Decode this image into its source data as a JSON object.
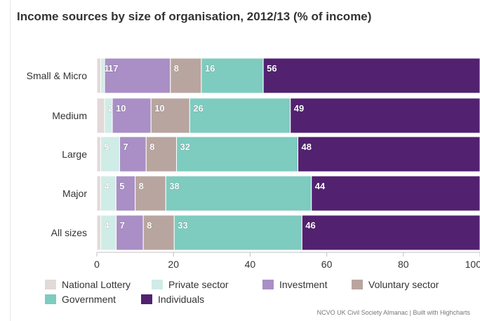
{
  "chart_data": {
    "type": "bar",
    "orientation": "horizontal",
    "stacking": "percent",
    "title": "Income sources by size of organisation, 2012/13 (% of income)",
    "categories": [
      "Small & Micro",
      "Medium",
      "Large",
      "Major",
      "All sizes"
    ],
    "series": [
      {
        "name": "National Lottery",
        "color": "#e2d9d9",
        "values": [
          1,
          2,
          1,
          1,
          1
        ],
        "labels": [
          "",
          "",
          "",
          "",
          ""
        ]
      },
      {
        "name": "Private sector",
        "color": "#d0ece7",
        "values": [
          1,
          2,
          5,
          4,
          4
        ],
        "labels": [
          "1",
          "2",
          "5",
          "4",
          "4"
        ]
      },
      {
        "name": "Investment",
        "color": "#a98fc5",
        "values": [
          17,
          10,
          7,
          5,
          7
        ],
        "labels": [
          "17",
          "10",
          "7",
          "5",
          "7"
        ]
      },
      {
        "name": "Voluntary sector",
        "color": "#b9a59f",
        "values": [
          8,
          10,
          8,
          8,
          8
        ],
        "labels": [
          "8",
          "10",
          "8",
          "8",
          "8"
        ]
      },
      {
        "name": "Government",
        "color": "#7ecbbf",
        "values": [
          16,
          26,
          32,
          38,
          33
        ],
        "labels": [
          "16",
          "26",
          "32",
          "38",
          "33"
        ]
      },
      {
        "name": "Individuals",
        "color": "#522170",
        "values": [
          56,
          49,
          48,
          44,
          46
        ],
        "labels": [
          "56",
          "49",
          "48",
          "44",
          "46"
        ]
      }
    ],
    "xlim": [
      0,
      100
    ],
    "ticks": [
      "0",
      "20",
      "40",
      "60",
      "80",
      "100"
    ],
    "grid": false,
    "legend_position": "bottom-left"
  },
  "credits": "NCVO UK Civil Society Almanac | Built with Highcharts"
}
